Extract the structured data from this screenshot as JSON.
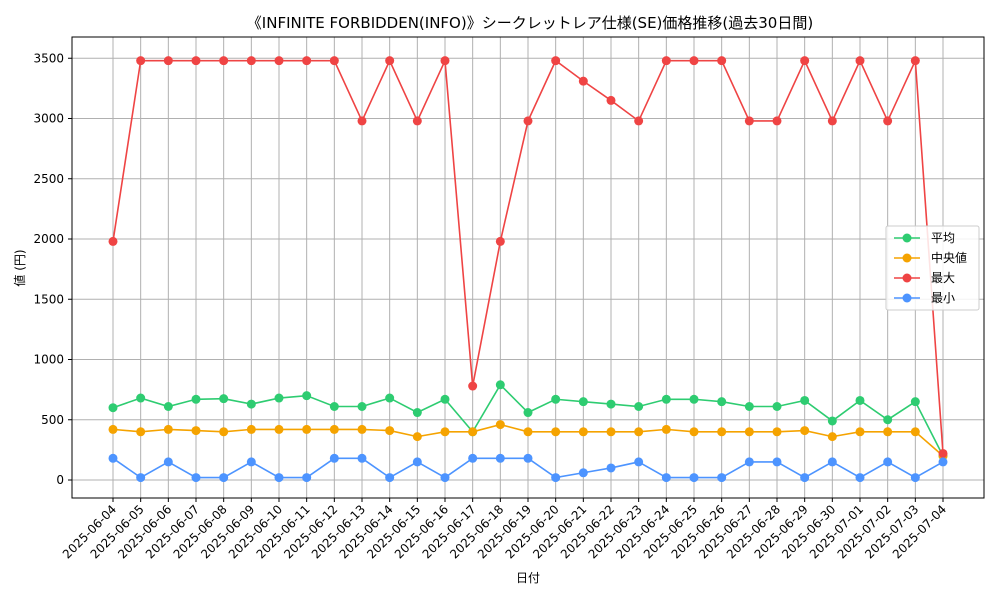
{
  "chart_data": {
    "type": "line",
    "title": "《INFINITE FORBIDDEN(INFO)》シークレットレア仕様(SE)価格推移(過去30日間)",
    "xlabel": "日付",
    "ylabel": "値 (円)",
    "ylim": [
      -150,
      3650
    ],
    "yticks": [
      0,
      500,
      1000,
      1500,
      2000,
      2500,
      3000,
      3500
    ],
    "grid": true,
    "legend_position": "center-right",
    "categories": [
      "2025-06-04",
      "2025-06-05",
      "2025-06-06",
      "2025-06-07",
      "2025-06-08",
      "2025-06-09",
      "2025-06-10",
      "2025-06-11",
      "2025-06-12",
      "2025-06-13",
      "2025-06-14",
      "2025-06-15",
      "2025-06-16",
      "2025-06-17",
      "2025-06-18",
      "2025-06-19",
      "2025-06-20",
      "2025-06-21",
      "2025-06-22",
      "2025-06-23",
      "2025-06-24",
      "2025-06-25",
      "2025-06-26",
      "2025-06-27",
      "2025-06-28",
      "2025-06-29",
      "2025-06-30",
      "2025-07-01",
      "2025-07-02",
      "2025-07-03",
      "2025-07-04"
    ],
    "series": [
      {
        "name": "平均",
        "color": "#2ecc71",
        "values": [
          600,
          680,
          610,
          670,
          675,
          630,
          680,
          700,
          610,
          610,
          680,
          560,
          670,
          400,
          790,
          560,
          670,
          650,
          630,
          610,
          670,
          670,
          650,
          610,
          610,
          660,
          490,
          660,
          500,
          650,
          200
        ]
      },
      {
        "name": "中央値",
        "color": "#f5a300",
        "values": [
          420,
          400,
          420,
          410,
          400,
          420,
          420,
          420,
          420,
          420,
          410,
          360,
          400,
          400,
          460,
          400,
          400,
          400,
          400,
          400,
          420,
          400,
          400,
          400,
          400,
          410,
          360,
          400,
          400,
          400,
          200
        ]
      },
      {
        "name": "最大",
        "color": "#ef4444",
        "values": [
          1980,
          3480,
          3480,
          3480,
          3480,
          3480,
          3480,
          3480,
          3480,
          2980,
          3480,
          2980,
          3480,
          780,
          1980,
          2980,
          3480,
          3310,
          3150,
          2980,
          3480,
          3480,
          3480,
          2980,
          2980,
          3480,
          2980,
          3480,
          2980,
          3480,
          220
        ]
      },
      {
        "name": "最小",
        "color": "#4d94ff",
        "values": [
          180,
          20,
          150,
          20,
          20,
          150,
          20,
          20,
          180,
          180,
          20,
          150,
          20,
          180,
          180,
          180,
          20,
          60,
          100,
          150,
          20,
          20,
          20,
          150,
          150,
          20,
          150,
          20,
          150,
          20,
          150
        ]
      }
    ]
  }
}
